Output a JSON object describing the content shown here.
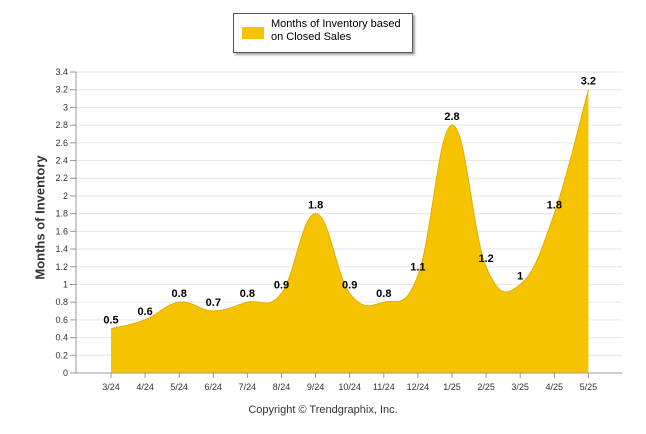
{
  "chart_data": {
    "type": "area",
    "categories": [
      "3/24",
      "4/24",
      "5/24",
      "6/24",
      "7/24",
      "8/24",
      "9/24",
      "10/24",
      "11/24",
      "12/24",
      "1/25",
      "2/25",
      "3/25",
      "4/25",
      "5/25"
    ],
    "series": [
      {
        "name": "Months of Inventory based on Closed Sales",
        "values": [
          0.5,
          0.6,
          0.8,
          0.7,
          0.8,
          0.9,
          1.8,
          0.9,
          0.8,
          1.1,
          2.8,
          1.2,
          1,
          1.8,
          3.2
        ]
      }
    ],
    "data_labels": [
      "0.5",
      "0.6",
      "0.8",
      "0.7",
      "0.8",
      "0.9",
      "1.8",
      "0.9",
      "0.8",
      "1.1",
      "2.8",
      "1.2",
      "1",
      "1.8",
      "3.2"
    ],
    "ylabel": "Months of Inventory",
    "xlabel": "",
    "ylim": [
      0,
      3.4
    ],
    "yticks": [
      "0",
      "0.2",
      "0.4",
      "0.6",
      "0.8",
      "1",
      "1.2",
      "1.4",
      "1.6",
      "1.8",
      "2",
      "2.2",
      "2.4",
      "2.6",
      "2.8",
      "3",
      "3.2",
      "3.4"
    ],
    "grid": true,
    "legend_position": "top-center",
    "fill_color": "#f6c300"
  },
  "legend": {
    "label": "Months of Inventory based on Closed Sales"
  },
  "footer": {
    "copyright": "Copyright © Trendgraphix, Inc."
  }
}
